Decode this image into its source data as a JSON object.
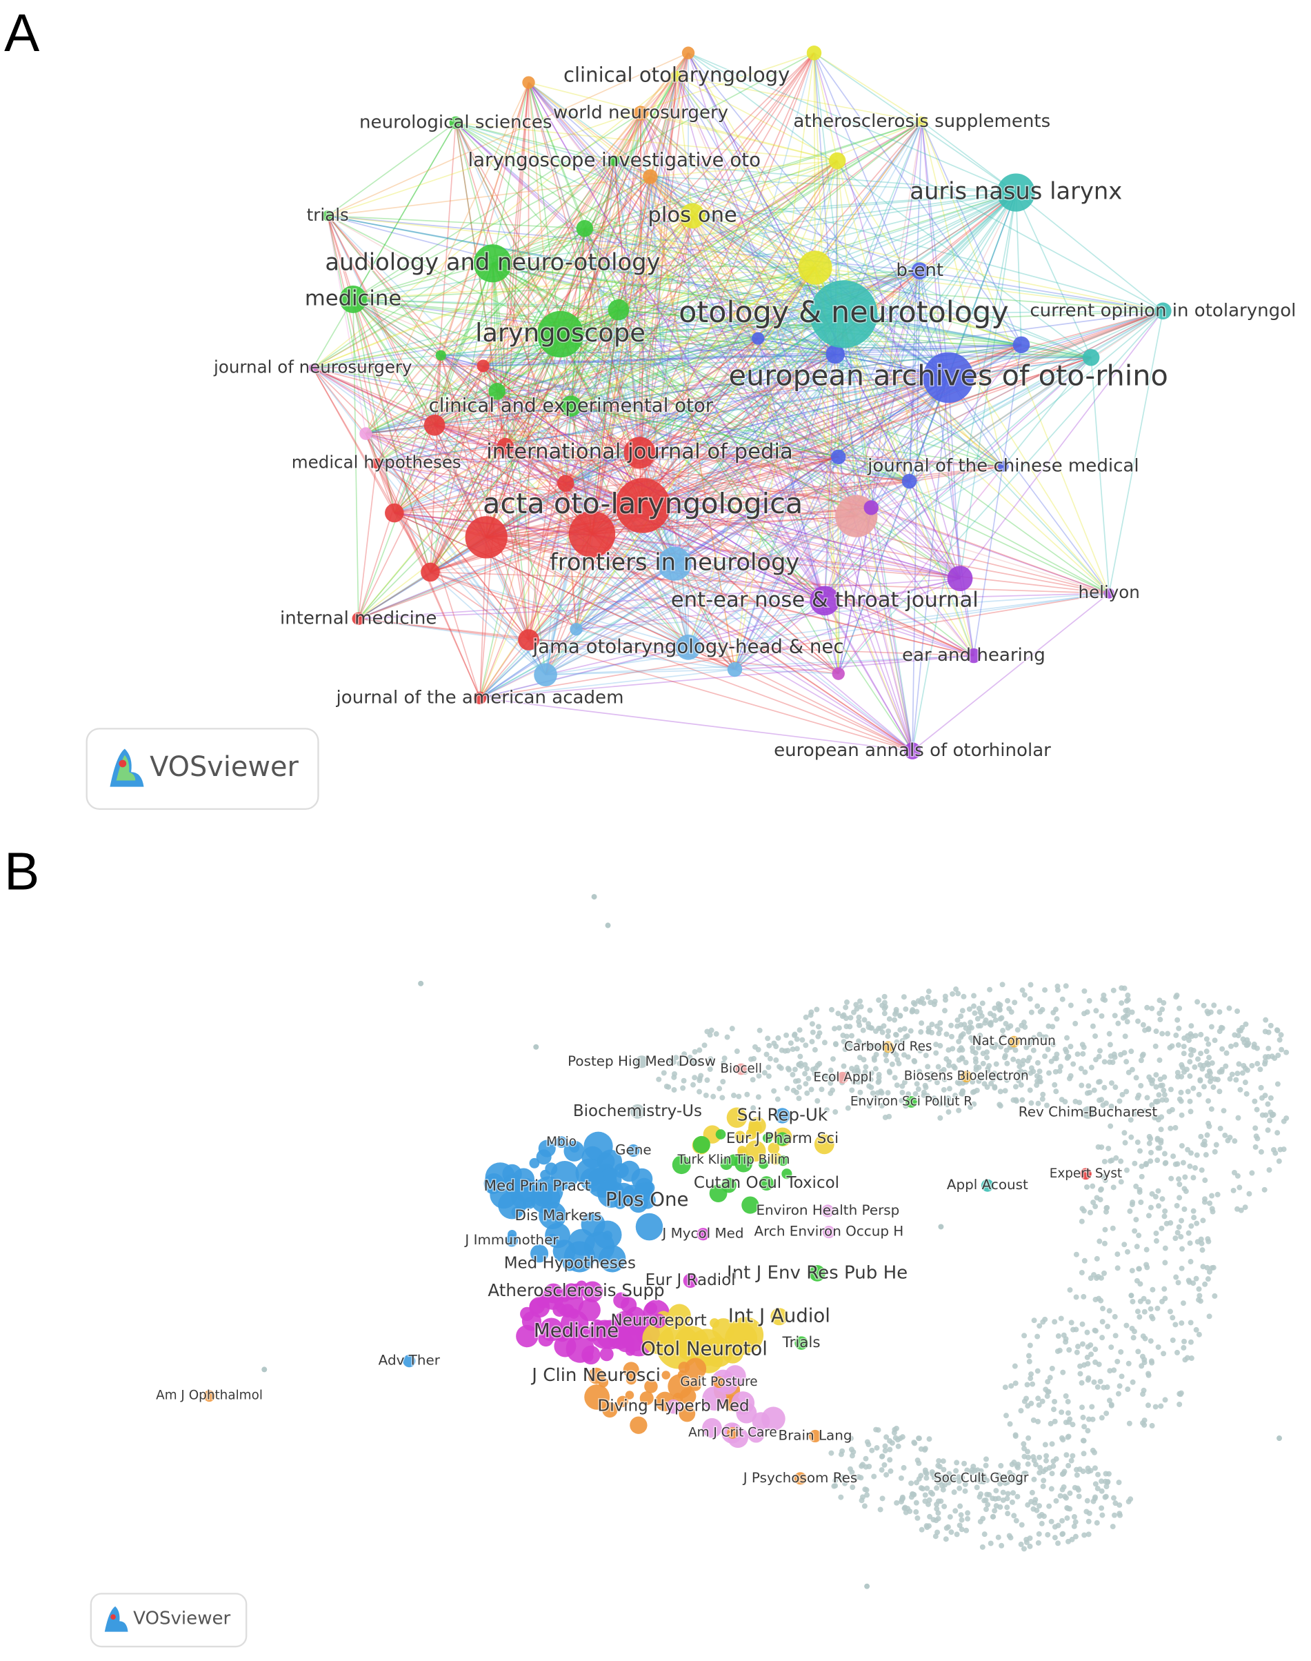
{
  "panel_a": {
    "letter": "A",
    "logo": "VOSviewer",
    "nodes": [
      {
        "label": "clinical otolaryngology",
        "color": "#e6e62e"
      },
      {
        "label": "world neurosurgery",
        "color": "#f0963c"
      },
      {
        "label": "neurological sciences",
        "color": "#3cc83c"
      },
      {
        "label": "atherosclerosis supplements",
        "color": "#e6e62e"
      },
      {
        "label": "laryngoscope investigative oto",
        "color": "#3cc83c"
      },
      {
        "label": "auris nasus larynx",
        "color": "#3cbeb4"
      },
      {
        "label": "trials",
        "color": "#3cc83c"
      },
      {
        "label": "plos one",
        "color": "#e6e62e"
      },
      {
        "label": "audiology and neuro-otology",
        "color": "#3cc83c"
      },
      {
        "label": "b-ent",
        "color": "#5064e6"
      },
      {
        "label": "medicine",
        "color": "#3cc83c"
      },
      {
        "label": "otology & neurotology",
        "color": "#3cbeb4"
      },
      {
        "label": "current opinion in otolaryngol",
        "color": "#3cbeb4"
      },
      {
        "label": "laryngoscope",
        "color": "#3cc83c"
      },
      {
        "label": "journal of neurosurgery",
        "color": "#c850c8"
      },
      {
        "label": "european archives of oto-rhino",
        "color": "#5064e6"
      },
      {
        "label": "clinical and experimental otor",
        "color": "#3cc83c"
      },
      {
        "label": "medical hypotheses",
        "color": "#e63c3c"
      },
      {
        "label": "international journal of pedia",
        "color": "#e63c3c"
      },
      {
        "label": "journal of the chinese medical",
        "color": "#5064e6"
      },
      {
        "label": "acta oto-laryngologica",
        "color": "#e63c3c"
      },
      {
        "label": "frontiers in neurology",
        "color": "#6eb4e6"
      },
      {
        "label": "heliyon",
        "color": "#a040d8"
      },
      {
        "label": "ent-ear nose & throat journal",
        "color": "#a040d8"
      },
      {
        "label": "internal medicine",
        "color": "#e63c3c"
      },
      {
        "label": "jama otolaryngology-head & nec",
        "color": "#6eb4e6"
      },
      {
        "label": "ear and hearing",
        "color": "#a040d8"
      },
      {
        "label": "journal of the american academ",
        "color": "#e63c3c"
      },
      {
        "label": "european annals of otorhinolar",
        "color": "#a040d8"
      }
    ]
  },
  "panel_b": {
    "letter": "B",
    "logo": "VOSviewer",
    "nodes": [
      {
        "label": "Postep Hig Med Dosw",
        "color": "#b4c8c8"
      },
      {
        "label": "Biocell",
        "color": "#f0a0a0"
      },
      {
        "label": "Carbohyd Res",
        "color": "#f0b43c"
      },
      {
        "label": "Nat Commun",
        "color": "#f0b43c"
      },
      {
        "label": "Ecol Appl",
        "color": "#f0a0a0"
      },
      {
        "label": "Biosens Bioelectron",
        "color": "#f0b43c"
      },
      {
        "label": "Environ Sci Pollut R",
        "color": "#3cc83c"
      },
      {
        "label": "Biochemistry-Us",
        "color": "#b4c8c8"
      },
      {
        "label": "Sci Rep-Uk",
        "color": "#3c9be0"
      },
      {
        "label": "Rev Chim-Bucharest",
        "color": "#b4c8c8"
      },
      {
        "label": "Mbio",
        "color": "#3c9be0"
      },
      {
        "label": "Gene",
        "color": "#3c9be0"
      },
      {
        "label": "Eur J Pharm Sci",
        "color": "#3cc83c"
      },
      {
        "label": "Turk Klin Tip Bilim",
        "color": "#3cc83c"
      },
      {
        "label": "Expert Syst",
        "color": "#e63c3c"
      },
      {
        "label": "Med Prin Pract",
        "color": "#3c9be0"
      },
      {
        "label": "Cutan Ocul Toxicol",
        "color": "#3cc83c"
      },
      {
        "label": "Appl Acoust",
        "color": "#3cbeb4"
      },
      {
        "label": "Plos One",
        "color": "#3c9be0"
      },
      {
        "label": "Dis Markers",
        "color": "#3c9be0"
      },
      {
        "label": "Environ Health Persp",
        "color": "#e6a0e6"
      },
      {
        "label": "J Mycol Med",
        "color": "#d23cd2"
      },
      {
        "label": "Arch Environ Occup H",
        "color": "#e6a0e6"
      },
      {
        "label": "J Immunother",
        "color": "#3c9be0"
      },
      {
        "label": "Med Hypotheses",
        "color": "#3c9be0"
      },
      {
        "label": "Int J Env Res Pub He",
        "color": "#3cc83c"
      },
      {
        "label": "Eur J Radiol",
        "color": "#d23cd2"
      },
      {
        "label": "Atherosclerosis Supp",
        "color": "#d23cd2"
      },
      {
        "label": "Int J Audiol",
        "color": "#f0d23c"
      },
      {
        "label": "Neuroreport",
        "color": "#d23cd2"
      },
      {
        "label": "Medicine",
        "color": "#d23cd2"
      },
      {
        "label": "Trials",
        "color": "#3cc83c"
      },
      {
        "label": "Otol Neurotol",
        "color": "#f0d23c"
      },
      {
        "label": "Adv Ther",
        "color": "#3c9be0"
      },
      {
        "label": "J Clin Neurosci",
        "color": "#f0963c"
      },
      {
        "label": "Gait Posture",
        "color": "#f0963c"
      },
      {
        "label": "Am J Ophthalmol",
        "color": "#f0963c"
      },
      {
        "label": "Diving Hyperb Med",
        "color": "#e6a0e6"
      },
      {
        "label": "Am J Crit Care",
        "color": "#f0963c"
      },
      {
        "label": "Brain Lang",
        "color": "#f0963c"
      },
      {
        "label": "J Psychosom Res",
        "color": "#f0963c"
      },
      {
        "label": "Soc Cult Geogr",
        "color": "#b4c8c8"
      }
    ]
  }
}
